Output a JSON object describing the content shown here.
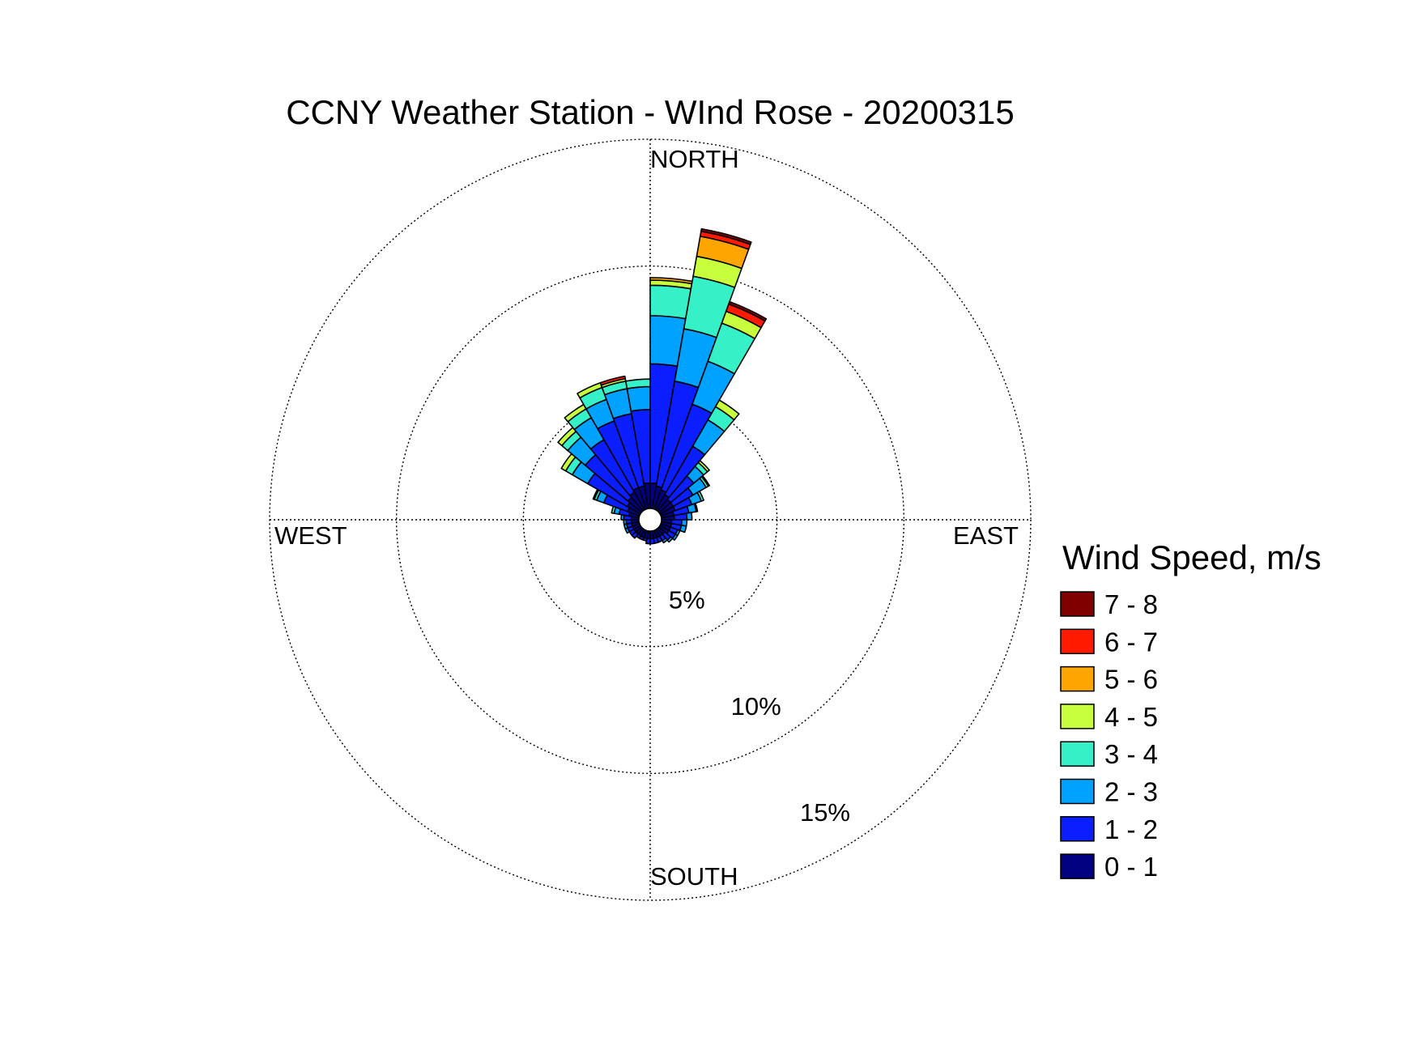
{
  "chart_data": {
    "type": "wind-rose",
    "title": "CCNY Weather Station - WInd Rose - 20200315",
    "direction_labels": {
      "north": "NORTH",
      "east": "EAST",
      "south": "SOUTH",
      "west": "WEST"
    },
    "radial_ticks": [
      {
        "value": 5,
        "label": "5%"
      },
      {
        "value": 10,
        "label": "10%"
      },
      {
        "value": 15,
        "label": "15%"
      }
    ],
    "radial_max": 15,
    "legend_title": "Wind Speed, m/s",
    "bins": [
      {
        "label": "0 - 1",
        "color": "#000080"
      },
      {
        "label": "1 - 2",
        "color": "#0a1eff"
      },
      {
        "label": "2 - 3",
        "color": "#00a2ff"
      },
      {
        "label": "3 - 4",
        "color": "#36f0c8"
      },
      {
        "label": "4 - 5",
        "color": "#c8ff3c"
      },
      {
        "label": "5 - 6",
        "color": "#ffa500"
      },
      {
        "label": "6 - 7",
        "color": "#ff1a00"
      },
      {
        "label": "7 - 8",
        "color": "#800000"
      }
    ],
    "sector_width_deg": 10,
    "sectors": [
      {
        "dir": 5,
        "values": [
          1.0,
          4.7,
          1.9,
          1.2,
          0.2,
          0.1,
          0.0,
          0.0
        ]
      },
      {
        "dir": 15,
        "values": [
          0.9,
          4.2,
          2.1,
          2.1,
          0.8,
          0.8,
          0.2,
          0.1
        ]
      },
      {
        "dir": 25,
        "values": [
          0.8,
          3.6,
          1.8,
          1.6,
          0.5,
          0.0,
          0.3,
          0.1
        ]
      },
      {
        "dir": 35,
        "values": [
          0.7,
          2.2,
          1.2,
          0.6,
          0.3,
          0.0,
          0.0,
          0.0
        ]
      },
      {
        "dir": 45,
        "values": [
          0.6,
          1.2,
          0.5,
          0.2,
          0.1,
          0.0,
          0.0,
          0.0
        ]
      },
      {
        "dir": 55,
        "values": [
          0.6,
          0.9,
          0.6,
          0.1,
          0.05,
          0.0,
          0.0,
          0.0
        ]
      },
      {
        "dir": 65,
        "values": [
          0.6,
          0.7,
          0.4,
          0.1,
          0.0,
          0.0,
          0.0,
          0.0
        ]
      },
      {
        "dir": 75,
        "values": [
          0.5,
          0.6,
          0.3,
          0.05,
          0.0,
          0.0,
          0.0,
          0.0
        ]
      },
      {
        "dir": 85,
        "values": [
          0.5,
          0.5,
          0.2,
          0.0,
          0.0,
          0.0,
          0.0,
          0.0
        ]
      },
      {
        "dir": 95,
        "values": [
          0.4,
          0.4,
          0.2,
          0.0,
          0.0,
          0.0,
          0.0,
          0.0
        ]
      },
      {
        "dir": 105,
        "values": [
          0.4,
          0.4,
          0.2,
          0.0,
          0.0,
          0.0,
          0.0,
          0.0
        ]
      },
      {
        "dir": 115,
        "values": [
          0.4,
          0.3,
          0.1,
          0.0,
          0.0,
          0.0,
          0.0,
          0.0
        ]
      },
      {
        "dir": 125,
        "values": [
          0.4,
          0.3,
          0.1,
          0.0,
          0.0,
          0.0,
          0.0,
          0.0
        ]
      },
      {
        "dir": 135,
        "values": [
          0.3,
          0.3,
          0.1,
          0.0,
          0.0,
          0.0,
          0.0,
          0.0
        ]
      },
      {
        "dir": 145,
        "values": [
          0.3,
          0.2,
          0.1,
          0.0,
          0.0,
          0.0,
          0.0,
          0.0
        ]
      },
      {
        "dir": 155,
        "values": [
          0.3,
          0.2,
          0.0,
          0.0,
          0.0,
          0.0,
          0.0,
          0.0
        ]
      },
      {
        "dir": 165,
        "values": [
          0.3,
          0.2,
          0.0,
          0.0,
          0.0,
          0.0,
          0.0,
          0.0
        ]
      },
      {
        "dir": 175,
        "values": [
          0.3,
          0.2,
          0.0,
          0.0,
          0.0,
          0.0,
          0.0,
          0.0
        ]
      },
      {
        "dir": 185,
        "values": [
          0.3,
          0.2,
          0.0,
          0.0,
          0.0,
          0.0,
          0.0,
          0.0
        ]
      },
      {
        "dir": 195,
        "values": [
          0.3,
          0.1,
          0.0,
          0.0,
          0.0,
          0.0,
          0.0,
          0.0
        ]
      },
      {
        "dir": 205,
        "values": [
          0.3,
          0.1,
          0.0,
          0.0,
          0.0,
          0.0,
          0.0,
          0.0
        ]
      },
      {
        "dir": 215,
        "values": [
          0.3,
          0.1,
          0.0,
          0.0,
          0.0,
          0.0,
          0.0,
          0.0
        ]
      },
      {
        "dir": 225,
        "values": [
          0.3,
          0.2,
          0.0,
          0.0,
          0.0,
          0.0,
          0.0,
          0.0
        ]
      },
      {
        "dir": 235,
        "values": [
          0.3,
          0.2,
          0.0,
          0.0,
          0.0,
          0.0,
          0.0,
          0.0
        ]
      },
      {
        "dir": 245,
        "values": [
          0.3,
          0.2,
          0.1,
          0.0,
          0.0,
          0.0,
          0.0,
          0.0
        ]
      },
      {
        "dir": 255,
        "values": [
          0.3,
          0.2,
          0.1,
          0.0,
          0.0,
          0.0,
          0.0,
          0.0
        ]
      },
      {
        "dir": 265,
        "values": [
          0.3,
          0.2,
          0.1,
          0.0,
          0.0,
          0.0,
          0.0,
          0.0
        ]
      },
      {
        "dir": 275,
        "values": [
          0.3,
          0.3,
          0.1,
          0.0,
          0.0,
          0.0,
          0.0,
          0.0
        ]
      },
      {
        "dir": 285,
        "values": [
          0.4,
          0.4,
          0.2,
          0.1,
          0.0,
          0.0,
          0.0,
          0.0
        ]
      },
      {
        "dir": 295,
        "values": [
          0.5,
          1.0,
          0.3,
          0.1,
          0.05,
          0.0,
          0.0,
          0.0
        ]
      },
      {
        "dir": 305,
        "values": [
          0.6,
          1.8,
          0.7,
          0.3,
          0.2,
          0.0,
          0.0,
          0.0
        ]
      },
      {
        "dir": 315,
        "values": [
          0.7,
          2.2,
          0.9,
          0.3,
          0.2,
          0.0,
          0.0,
          0.0
        ]
      },
      {
        "dir": 325,
        "values": [
          0.8,
          2.4,
          1.0,
          0.4,
          0.2,
          0.0,
          0.0,
          0.0
        ]
      },
      {
        "dir": 335,
        "values": [
          0.9,
          2.8,
          0.9,
          0.5,
          0.2,
          0.0,
          0.0,
          0.0
        ]
      },
      {
        "dir": 345,
        "values": [
          0.9,
          2.9,
          1.0,
          0.3,
          0.1,
          0.0,
          0.1,
          0.0
        ]
      },
      {
        "dir": 355,
        "values": [
          1.0,
          2.9,
          0.9,
          0.3,
          0.0,
          0.0,
          0.0,
          0.0
        ]
      }
    ]
  }
}
